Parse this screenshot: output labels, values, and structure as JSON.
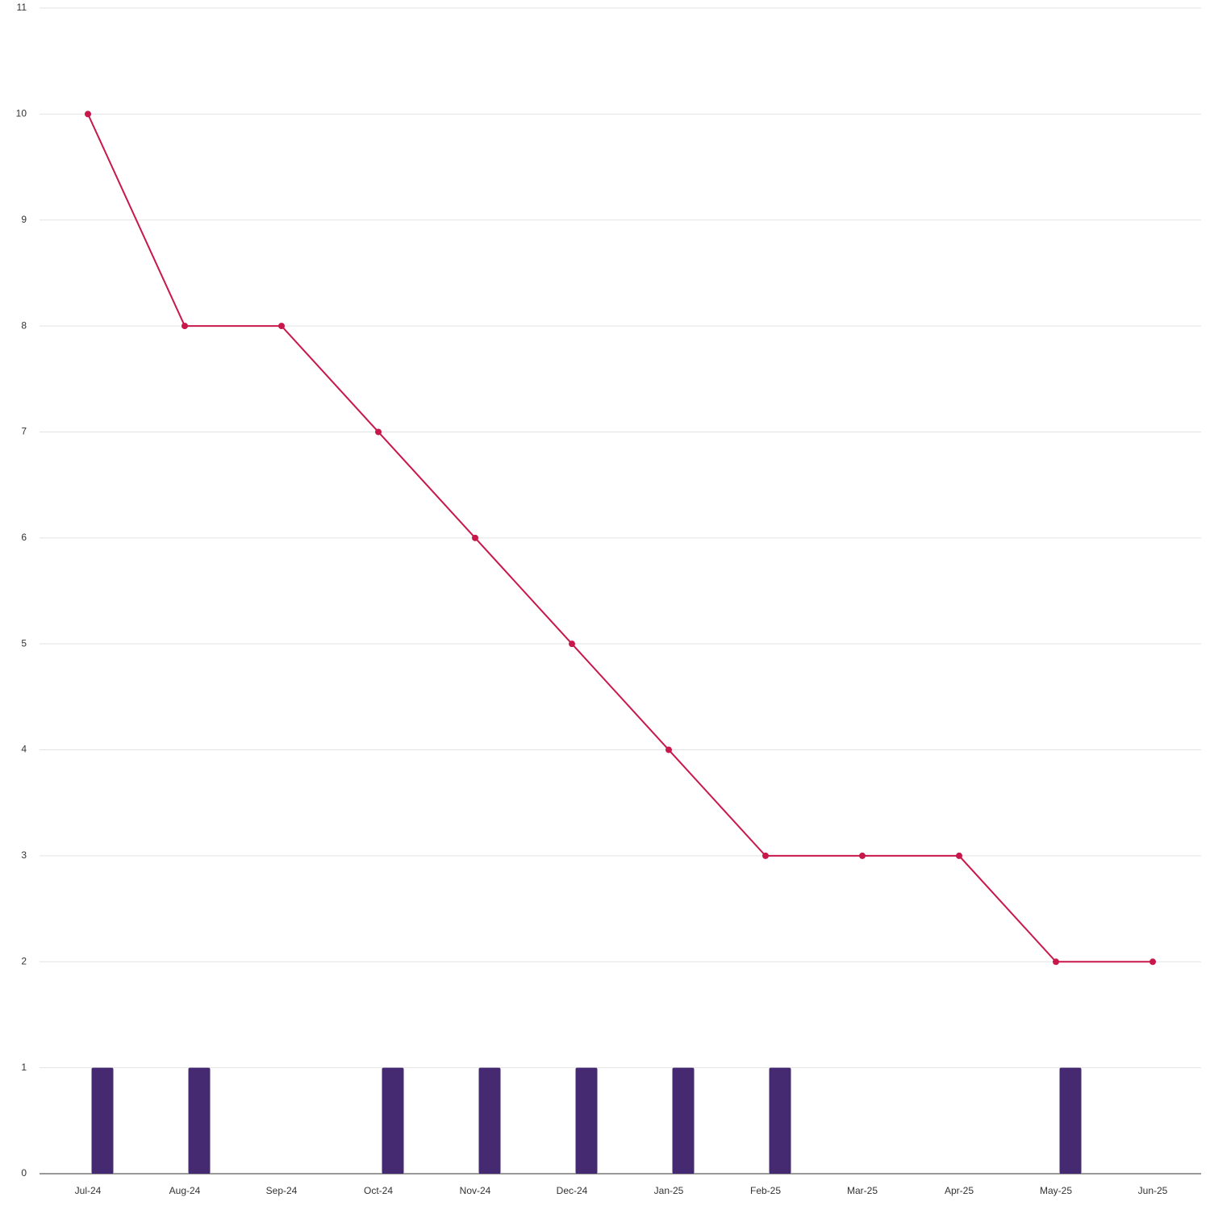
{
  "chart_data": {
    "type": "combo",
    "categories": [
      "Jul-24",
      "Aug-24",
      "Sep-24",
      "Oct-24",
      "Nov-24",
      "Dec-24",
      "Jan-25",
      "Feb-25",
      "Mar-25",
      "Apr-25",
      "May-25",
      "Jun-25"
    ],
    "series": [
      {
        "type": "bar",
        "color": "#452a72",
        "values": [
          1,
          1,
          0,
          1,
          1,
          1,
          1,
          1,
          0,
          0,
          1,
          0
        ]
      },
      {
        "type": "line",
        "color": "#c8174a",
        "values": [
          10,
          8,
          8,
          7,
          6,
          5,
          4,
          3,
          3,
          3,
          2,
          2
        ]
      }
    ],
    "ylim": [
      0,
      11
    ],
    "yticks": [
      0,
      1,
      2,
      3,
      4,
      5,
      6,
      7,
      8,
      9,
      10,
      11
    ],
    "grid": true
  }
}
